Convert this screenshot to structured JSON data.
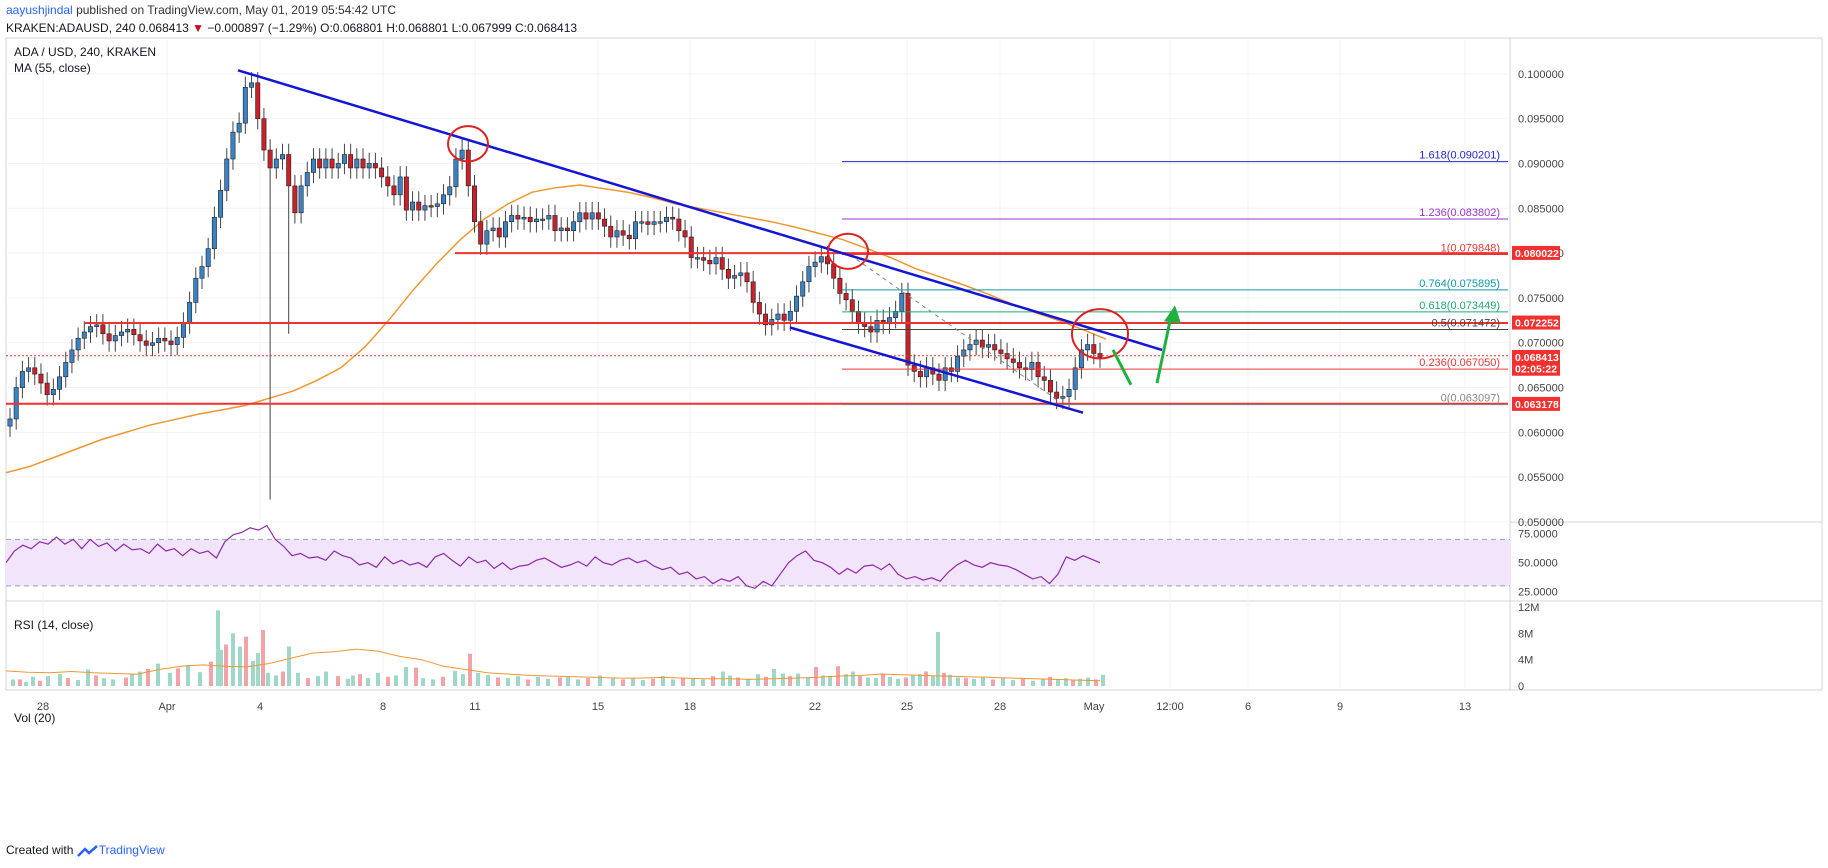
{
  "header": {
    "user": "aayushjindal",
    "published": "published on TradingView.com, May 01, 2019 05:54:42 UTC",
    "symbol_line": "KRAKEN:ADAUSD, 240",
    "last": "0.068413",
    "arrow": "▼",
    "change": "−0.000897 (−1.29%)",
    "open": "O:0.068801",
    "high": "H:0.068801",
    "low": "L:0.067999",
    "close": "C:0.068413"
  },
  "footer": {
    "created_with": "Created with",
    "brand": "TradingView"
  },
  "colors": {
    "up": "#26a69a",
    "down": "#c8212b",
    "ma": "#f2962f",
    "trend": "#1515d6",
    "level": "#f23030",
    "rsi": "#8e2aa8",
    "rsi_band": "#f1e4fb",
    "arrow": "#20b040"
  },
  "chart_data": [
    {
      "type": "candlestick",
      "title": "ADA / USD, 240, KRAKEN",
      "indicator": "MA (55, close)",
      "ylim": [
        0.05,
        0.104
      ],
      "y_ticks": [
        "0.100000",
        "0.095000",
        "0.090000",
        "0.085000",
        "0.080000",
        "0.075000",
        "0.070000",
        "0.065000",
        "0.060000",
        "0.055000",
        "0.050000"
      ],
      "x_ticks": [
        "28",
        "Apr",
        "4",
        "8",
        "11",
        "15",
        "18",
        "22",
        "25",
        "28",
        "May",
        "12:00",
        "6",
        "9",
        "13"
      ],
      "close_path": [
        0.0615,
        0.065,
        0.0668,
        0.0672,
        0.0665,
        0.0655,
        0.0642,
        0.0648,
        0.0662,
        0.0678,
        0.0692,
        0.0705,
        0.0712,
        0.0718,
        0.072,
        0.071,
        0.0702,
        0.0708,
        0.0712,
        0.0715,
        0.0709,
        0.0702,
        0.0697,
        0.07,
        0.0705,
        0.0702,
        0.0698,
        0.0706,
        0.0722,
        0.0745,
        0.0772,
        0.0785,
        0.0805,
        0.084,
        0.087,
        0.0905,
        0.0935,
        0.0945,
        0.0985,
        0.099,
        0.095,
        0.0915,
        0.0895,
        0.0905,
        0.091,
        0.0875,
        0.0845,
        0.0875,
        0.089,
        0.0905,
        0.0895,
        0.0905,
        0.0895,
        0.09,
        0.091,
        0.0895,
        0.0905,
        0.0895,
        0.09,
        0.0895,
        0.0885,
        0.0875,
        0.0865,
        0.0885,
        0.0848,
        0.0857,
        0.0848,
        0.0853,
        0.0852,
        0.0855,
        0.0865,
        0.0874,
        0.0905,
        0.0915,
        0.0875,
        0.0835,
        0.081,
        0.0825,
        0.0828,
        0.0818,
        0.0835,
        0.0842,
        0.0838,
        0.084,
        0.0835,
        0.0838,
        0.0838,
        0.0842,
        0.0825,
        0.0828,
        0.0825,
        0.0835,
        0.0845,
        0.0838,
        0.0845,
        0.0838,
        0.083,
        0.0818,
        0.0825,
        0.082,
        0.0816,
        0.0835,
        0.0835,
        0.0832,
        0.0835,
        0.0835,
        0.084,
        0.0838,
        0.0825,
        0.0818,
        0.0795,
        0.0795,
        0.0792,
        0.0788,
        0.0795,
        0.0782,
        0.0772,
        0.0775,
        0.0778,
        0.0768,
        0.0745,
        0.0732,
        0.072,
        0.0726,
        0.0732,
        0.0725,
        0.0735,
        0.0752,
        0.0768,
        0.0785,
        0.079,
        0.0796,
        0.0788,
        0.0772,
        0.0755,
        0.0748,
        0.0735,
        0.0722,
        0.0718,
        0.0712,
        0.0725,
        0.0722,
        0.0728,
        0.0735,
        0.0755,
        0.0675,
        0.0668,
        0.0662,
        0.0672,
        0.0665,
        0.0658,
        0.0672,
        0.0668,
        0.0685,
        0.0692,
        0.0698,
        0.0703,
        0.0695,
        0.0698,
        0.0692,
        0.0688,
        0.0682,
        0.0678,
        0.0672,
        0.067,
        0.0678,
        0.0662,
        0.0658,
        0.0645,
        0.0638,
        0.064,
        0.0648,
        0.0672,
        0.0692,
        0.0698,
        0.0688,
        0.0684
      ],
      "spike_lows": [
        {
          "index": 42,
          "low": 0.0525
        },
        {
          "index": 45,
          "low": 0.071
        }
      ],
      "ma_path": [
        0.0555,
        0.0562,
        0.0572,
        0.0582,
        0.0592,
        0.06,
        0.0608,
        0.0614,
        0.062,
        0.0625,
        0.063,
        0.0638,
        0.0646,
        0.0658,
        0.0672,
        0.0695,
        0.0725,
        0.0758,
        0.0788,
        0.0815,
        0.0838,
        0.0855,
        0.0868,
        0.0873,
        0.0876,
        0.0872,
        0.0868,
        0.0862,
        0.0855,
        0.085,
        0.0845,
        0.084,
        0.0835,
        0.0829,
        0.0822,
        0.0815,
        0.0805,
        0.0795,
        0.0783,
        0.0774,
        0.0765,
        0.0755,
        0.0744,
        0.0734,
        0.0725,
        0.0715,
        0.0704
      ],
      "ma_x_range": [
        0,
        1100
      ],
      "horizontal_levels": [
        0.08,
        0.0722,
        0.0632
      ],
      "short_levels": [
        0.06855
      ],
      "fibonacci": [
        {
          "ratio": "1.618",
          "value": "0.090201",
          "price": 0.090201
        },
        {
          "ratio": "1.236",
          "value": "0.083802",
          "price": 0.083802
        },
        {
          "ratio": "1",
          "value": "0.079848",
          "price": 0.079848
        },
        {
          "ratio": "0.764",
          "value": "0.075895",
          "price": 0.075895
        },
        {
          "ratio": "0.618",
          "value": "0.073449",
          "price": 0.073449
        },
        {
          "ratio": "0.5",
          "value": "0.071472",
          "price": 0.071472
        },
        {
          "ratio": "0.236",
          "value": "0.067050",
          "price": 0.06705
        },
        {
          "ratio": "0",
          "value": "0.063097",
          "price": 0.063097
        }
      ],
      "price_tags": [
        {
          "label": "0.080022",
          "price": 0.080022,
          "color": "#f23030"
        },
        {
          "label": "0.072252",
          "price": 0.072252,
          "color": "#f23030"
        },
        {
          "label": "0.068413",
          "price": 0.068413,
          "color": "#f23030"
        },
        {
          "label": "02:05:22",
          "price": 0.0671,
          "color": "#f23030"
        },
        {
          "label": "0.063178",
          "price": 0.063178,
          "color": "#f23030"
        }
      ]
    },
    {
      "type": "line",
      "title": "RSI (14, close)",
      "ylim": [
        17,
        85
      ],
      "y_ticks": [
        "75.0000",
        "50.0000",
        "25.0000"
      ],
      "bands": [
        30,
        70
      ],
      "values": [
        50,
        60,
        65,
        62,
        68,
        66,
        72,
        66,
        70,
        62,
        70,
        64,
        67,
        60,
        66,
        61,
        62,
        58,
        66,
        60,
        62,
        56,
        62,
        58,
        60,
        54,
        68,
        74,
        76,
        80,
        78,
        82,
        70,
        64,
        56,
        58,
        54,
        55,
        52,
        60,
        56,
        54,
        48,
        50,
        46,
        55,
        49,
        52,
        48,
        50,
        46,
        55,
        58,
        52,
        47,
        55,
        50,
        52,
        45,
        50,
        44,
        47,
        48,
        52,
        54,
        50,
        46,
        48,
        51,
        47,
        55,
        50,
        48,
        52,
        54,
        50,
        52,
        47,
        44,
        46,
        40,
        42,
        36,
        38,
        32,
        36,
        34,
        38,
        30,
        28,
        34,
        30,
        40,
        50,
        56,
        60,
        52,
        50,
        46,
        40,
        45,
        41,
        47,
        48,
        44,
        49,
        40,
        36,
        38,
        35,
        37,
        34,
        42,
        48,
        52,
        48,
        46,
        50,
        48,
        47,
        44,
        40,
        36,
        38,
        32,
        40,
        55,
        52,
        56,
        53,
        50
      ],
      "series": [
        {
          "name": "RSI",
          "values": []
        }
      ]
    },
    {
      "type": "bar",
      "title": "Vol (20)",
      "ylim": [
        0,
        12
      ],
      "y_ticks": [
        "12M",
        "8M",
        "4M",
        "0"
      ],
      "bars": [
        {
          "i": 5,
          "v": 1.0
        },
        {
          "i": 12,
          "v": 1.0
        },
        {
          "i": 18,
          "v": 0.6
        },
        {
          "i": 25,
          "v": 1.4
        },
        {
          "i": 32,
          "v": 0.8
        },
        {
          "i": 40,
          "v": 1.5
        },
        {
          "i": 52,
          "v": 1.8
        },
        {
          "i": 60,
          "v": 1.2
        },
        {
          "i": 70,
          "v": 0.9
        },
        {
          "i": 80,
          "v": 2.5
        },
        {
          "i": 88,
          "v": 1.6
        },
        {
          "i": 96,
          "v": 1.2
        },
        {
          "i": 105,
          "v": 1.0
        },
        {
          "i": 118,
          "v": 1.3
        },
        {
          "i": 124,
          "v": 1.8
        },
        {
          "i": 132,
          "v": 2.2
        },
        {
          "i": 140,
          "v": 2.6
        },
        {
          "i": 150,
          "v": 3.4
        },
        {
          "i": 162,
          "v": 2.0
        },
        {
          "i": 170,
          "v": 2.7
        },
        {
          "i": 180,
          "v": 3.2
        },
        {
          "i": 192,
          "v": 2.1
        },
        {
          "i": 203,
          "v": 3.7
        },
        {
          "i": 210,
          "v": 11.5
        },
        {
          "i": 213,
          "v": 5.5
        },
        {
          "i": 218,
          "v": 6.3
        },
        {
          "i": 225,
          "v": 8.0
        },
        {
          "i": 232,
          "v": 6.0
        },
        {
          "i": 238,
          "v": 7.5
        },
        {
          "i": 245,
          "v": 3.8
        },
        {
          "i": 250,
          "v": 5.0
        },
        {
          "i": 255,
          "v": 8.5
        },
        {
          "i": 260,
          "v": 2.0
        },
        {
          "i": 268,
          "v": 1.6
        },
        {
          "i": 275,
          "v": 2.2
        },
        {
          "i": 281,
          "v": 6.0
        },
        {
          "i": 290,
          "v": 2.0
        },
        {
          "i": 300,
          "v": 1.2
        },
        {
          "i": 310,
          "v": 1.5
        },
        {
          "i": 318,
          "v": 2.2
        },
        {
          "i": 330,
          "v": 1.5
        },
        {
          "i": 340,
          "v": 1.1
        },
        {
          "i": 345,
          "v": 1.6
        },
        {
          "i": 352,
          "v": 1.8
        },
        {
          "i": 360,
          "v": 1.2
        },
        {
          "i": 370,
          "v": 2.0
        },
        {
          "i": 380,
          "v": 1.4
        },
        {
          "i": 388,
          "v": 1.6
        },
        {
          "i": 398,
          "v": 2.9
        },
        {
          "i": 408,
          "v": 2.8
        },
        {
          "i": 415,
          "v": 1.2
        },
        {
          "i": 425,
          "v": 1.0
        },
        {
          "i": 435,
          "v": 1.4
        },
        {
          "i": 447,
          "v": 2.3
        },
        {
          "i": 455,
          "v": 1.8
        },
        {
          "i": 462,
          "v": 4.9
        },
        {
          "i": 470,
          "v": 2.0
        },
        {
          "i": 480,
          "v": 1.7
        },
        {
          "i": 490,
          "v": 1.3
        },
        {
          "i": 500,
          "v": 1.2
        },
        {
          "i": 510,
          "v": 1.5
        },
        {
          "i": 520,
          "v": 1.0
        },
        {
          "i": 530,
          "v": 1.4
        },
        {
          "i": 540,
          "v": 1.1
        },
        {
          "i": 552,
          "v": 1.3
        },
        {
          "i": 560,
          "v": 1.5
        },
        {
          "i": 570,
          "v": 1.0
        },
        {
          "i": 580,
          "v": 1.2
        },
        {
          "i": 592,
          "v": 1.6
        },
        {
          "i": 605,
          "v": 1.3
        },
        {
          "i": 615,
          "v": 1.0
        },
        {
          "i": 625,
          "v": 1.2
        },
        {
          "i": 635,
          "v": 0.9
        },
        {
          "i": 645,
          "v": 1.1
        },
        {
          "i": 655,
          "v": 1.5
        },
        {
          "i": 665,
          "v": 1.0
        },
        {
          "i": 675,
          "v": 1.3
        },
        {
          "i": 685,
          "v": 1.2
        },
        {
          "i": 695,
          "v": 1.0
        },
        {
          "i": 705,
          "v": 1.5
        },
        {
          "i": 715,
          "v": 2.2
        },
        {
          "i": 722,
          "v": 1.6
        },
        {
          "i": 730,
          "v": 1.3
        },
        {
          "i": 740,
          "v": 1.1
        },
        {
          "i": 750,
          "v": 1.8
        },
        {
          "i": 758,
          "v": 1.4
        },
        {
          "i": 766,
          "v": 2.6
        },
        {
          "i": 775,
          "v": 1.9
        },
        {
          "i": 782,
          "v": 1.5
        },
        {
          "i": 790,
          "v": 1.9
        },
        {
          "i": 800,
          "v": 1.3
        },
        {
          "i": 808,
          "v": 2.9
        },
        {
          "i": 815,
          "v": 1.6
        },
        {
          "i": 822,
          "v": 1.4
        },
        {
          "i": 830,
          "v": 3.0
        },
        {
          "i": 838,
          "v": 1.8
        },
        {
          "i": 845,
          "v": 2.2
        },
        {
          "i": 852,
          "v": 1.5
        },
        {
          "i": 860,
          "v": 1.3
        },
        {
          "i": 868,
          "v": 1.2
        },
        {
          "i": 875,
          "v": 1.9
        },
        {
          "i": 882,
          "v": 1.4
        },
        {
          "i": 890,
          "v": 1.1
        },
        {
          "i": 898,
          "v": 1.3
        },
        {
          "i": 905,
          "v": 1.6
        },
        {
          "i": 912,
          "v": 1.8
        },
        {
          "i": 918,
          "v": 2.2
        },
        {
          "i": 925,
          "v": 1.5
        },
        {
          "i": 930,
          "v": 8.2
        },
        {
          "i": 936,
          "v": 2.0
        },
        {
          "i": 942,
          "v": 1.7
        },
        {
          "i": 950,
          "v": 1.3
        },
        {
          "i": 958,
          "v": 1.2
        },
        {
          "i": 966,
          "v": 1.1
        },
        {
          "i": 975,
          "v": 1.4
        },
        {
          "i": 985,
          "v": 1.0
        },
        {
          "i": 995,
          "v": 1.2
        },
        {
          "i": 1005,
          "v": 0.9
        },
        {
          "i": 1015,
          "v": 1.1
        },
        {
          "i": 1025,
          "v": 0.8
        },
        {
          "i": 1035,
          "v": 1.0
        },
        {
          "i": 1042,
          "v": 1.4
        },
        {
          "i": 1050,
          "v": 1.0
        },
        {
          "i": 1058,
          "v": 1.2
        },
        {
          "i": 1065,
          "v": 0.9
        },
        {
          "i": 1072,
          "v": 1.1
        },
        {
          "i": 1080,
          "v": 1.3
        },
        {
          "i": 1088,
          "v": 1.0
        },
        {
          "i": 1095,
          "v": 1.7
        }
      ],
      "ma_line": [
        2.3,
        2.1,
        2.0,
        2.2,
        2.0,
        1.9,
        1.8,
        2.5,
        3.0,
        3.2,
        3.0,
        2.9,
        3.4,
        4.2,
        5.0,
        5.2,
        5.6,
        5.3,
        4.5,
        4.0,
        3.0,
        2.5,
        2.0,
        1.8,
        1.6,
        1.5,
        1.4,
        1.3,
        1.2,
        1.2,
        1.3,
        1.2,
        1.1,
        1.1,
        1.0,
        1.1,
        1.2,
        1.3,
        1.5,
        1.6,
        1.8,
        1.7,
        1.6,
        1.5,
        1.4,
        1.3,
        1.2,
        1.1,
        1.0,
        0.9,
        0.8
      ]
    }
  ]
}
